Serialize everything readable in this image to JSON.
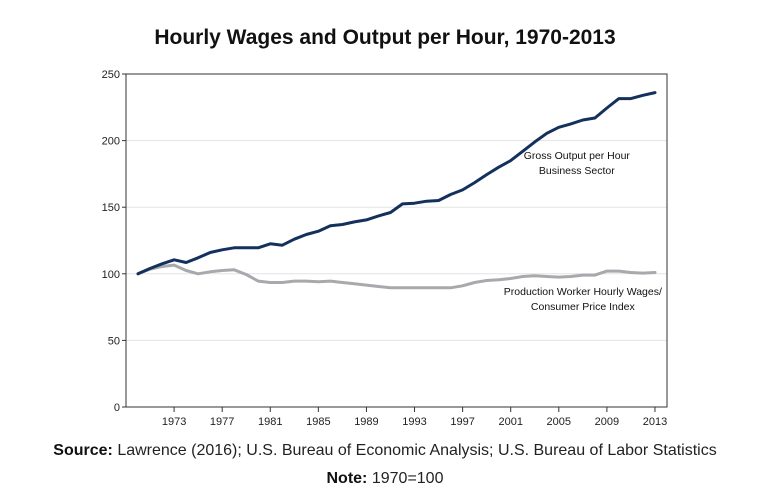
{
  "title": "Hourly Wages and Output per Hour, 1970-2013",
  "footer": {
    "source_label": "Source:",
    "source_text": "Lawrence (2016); U.S. Bureau of Economic Analysis; U.S. Bureau of Labor Statistics",
    "note_label": "Note:",
    "note_text": "1970=100"
  },
  "chart_data": {
    "type": "line",
    "title": "Hourly Wages and Output per Hour, 1970-2013",
    "xlabel": "",
    "ylabel": "",
    "xlim": [
      1969,
      2014
    ],
    "ylim": [
      0,
      250
    ],
    "y_ticks": [
      0,
      50,
      100,
      150,
      200,
      250
    ],
    "x_ticks": [
      1973,
      1977,
      1981,
      1985,
      1989,
      1993,
      1997,
      2001,
      2005,
      2009,
      2013
    ],
    "grid": "horizontal",
    "x": [
      1970,
      1971,
      1972,
      1973,
      1974,
      1975,
      1976,
      1977,
      1978,
      1979,
      1980,
      1981,
      1982,
      1983,
      1984,
      1985,
      1986,
      1987,
      1988,
      1989,
      1990,
      1991,
      1992,
      1993,
      1994,
      1995,
      1996,
      1997,
      1998,
      1999,
      2000,
      2001,
      2002,
      2003,
      2004,
      2005,
      2006,
      2007,
      2008,
      2009,
      2010,
      2011,
      2012,
      2013
    ],
    "series": [
      {
        "name": "Gross Output per Hour Business Sector",
        "label_lines": [
          "Gross Output per Hour",
          "Business Sector"
        ],
        "label_anchor": [
          2006.5,
          186
        ],
        "color": "#13315c",
        "values": [
          100,
          104,
          107.5,
          110.5,
          108.5,
          112,
          116,
          118,
          119.5,
          119.5,
          119.5,
          122.5,
          121.5,
          126,
          129.5,
          132,
          136,
          137,
          139,
          140.5,
          143.5,
          146,
          152.5,
          153,
          154.5,
          155,
          159.5,
          163,
          168.5,
          174.5,
          180,
          185,
          192,
          199,
          205.5,
          210,
          212.5,
          215.5,
          217,
          224.5,
          231.5,
          231.5,
          234,
          236
        ]
      },
      {
        "name": "Production Worker Hourly Wages/ Consumer Price Index",
        "label_lines": [
          "Production Worker Hourly Wages/",
          "Consumer Price Index"
        ],
        "label_anchor": [
          2007,
          84
        ],
        "color": "#a7a9ac",
        "values": [
          100,
          103.5,
          105.5,
          106.5,
          102.5,
          100,
          101.5,
          102.5,
          103,
          99.5,
          94.5,
          93.5,
          93.5,
          94.5,
          94.5,
          94,
          94.5,
          93.5,
          92.5,
          91.5,
          90.5,
          89.5,
          89.5,
          89.5,
          89.5,
          89.5,
          89.5,
          91,
          93.5,
          95,
          95.5,
          96.5,
          98,
          98.5,
          98,
          97.5,
          98,
          99,
          99,
          102,
          102,
          101,
          100.5,
          101
        ]
      }
    ]
  }
}
